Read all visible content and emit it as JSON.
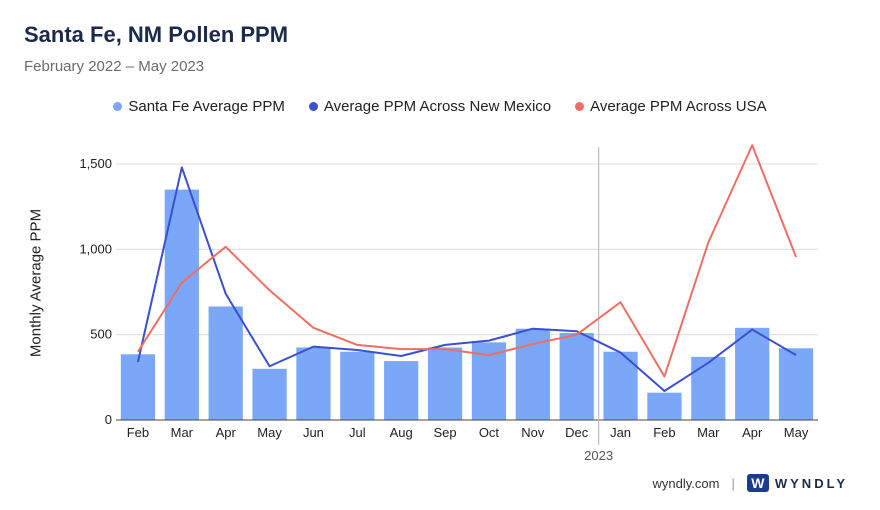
{
  "chart_data": {
    "type": "bar",
    "title": "Santa Fe, NM Pollen PPM",
    "subtitle": "February 2022 – May 2023",
    "ylabel": "Monthly Average PPM",
    "ylim": [
      0,
      1500
    ],
    "yticks": [
      {
        "value": 0,
        "label": "0"
      },
      {
        "value": 500,
        "label": "500"
      },
      {
        "value": 1000,
        "label": "1,000"
      },
      {
        "value": 1500,
        "label": "1,500"
      }
    ],
    "categories": [
      "Feb",
      "Mar",
      "Apr",
      "May",
      "Jun",
      "Jul",
      "Aug",
      "Sep",
      "Oct",
      "Nov",
      "Dec",
      "Jan",
      "Feb",
      "Mar",
      "Apr",
      "May"
    ],
    "year_marker": {
      "label": "2023",
      "before_index": 11
    },
    "grid": "horizontal",
    "legend_position": "top-center",
    "series": [
      {
        "name": "Santa Fe Average PPM",
        "kind": "bar",
        "color": "#7aa7f7",
        "values": [
          385,
          1350,
          665,
          300,
          425,
          400,
          345,
          425,
          455,
          535,
          510,
          400,
          160,
          370,
          540,
          420
        ]
      },
      {
        "name": "Average PPM Across New Mexico",
        "kind": "line",
        "color": "#3b4fcf",
        "values": [
          340,
          1480,
          740,
          315,
          430,
          410,
          375,
          440,
          465,
          535,
          520,
          395,
          170,
          335,
          530,
          380
        ]
      },
      {
        "name": "Average PPM Across USA",
        "kind": "line",
        "color": "#ef6e63",
        "values": [
          400,
          805,
          1015,
          760,
          540,
          440,
          415,
          415,
          380,
          445,
          500,
          690,
          255,
          1040,
          1610,
          955
        ]
      }
    ]
  },
  "footer": {
    "site": "wyndly.com",
    "separator": "|",
    "brand_mark": "W",
    "brand": "WYNDLY"
  }
}
